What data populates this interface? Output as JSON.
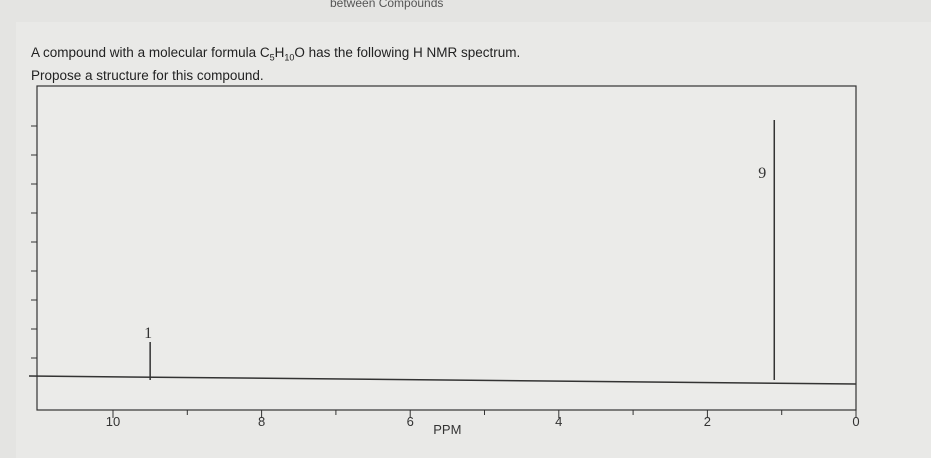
{
  "header": {
    "title_fragment": "between Compounds"
  },
  "question": {
    "line1_prefix": "A compound with a molecular formula C",
    "c_count": "5",
    "h_letter": "H",
    "h_count": "10",
    "line1_suffix": "O has the following H NMR spectrum.",
    "line2": "Propose a structure for this compound."
  },
  "chart_data": {
    "type": "nmr-stick",
    "xlabel": "PPM",
    "xlim": [
      10.5,
      0
    ],
    "xticks": [
      10,
      8,
      6,
      4,
      2,
      0
    ],
    "xtick_labels": [
      "10",
      "8",
      "6",
      "4",
      "2",
      "0"
    ],
    "minor_xticks": [
      9,
      7,
      5,
      3,
      1
    ],
    "peaks": [
      {
        "ppm": 9.5,
        "integration": "1",
        "relative_height": 1
      },
      {
        "ppm": 1.1,
        "integration": "9",
        "relative_height": 9
      }
    ],
    "colors": {
      "line": "#333333",
      "background": "#ebebe9"
    }
  }
}
